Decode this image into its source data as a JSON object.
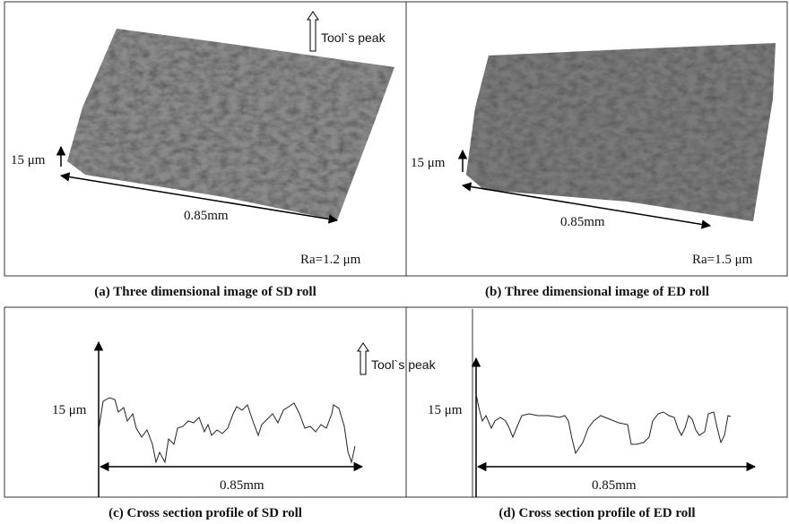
{
  "panels": [
    {
      "caption": "(a) Three dimensional image of SD roll",
      "annotation": "Tool`s peak",
      "height_label": "15 μm",
      "length_label": "0.85mm",
      "roughness": "Ra=1.2 μm"
    },
    {
      "caption": "(b) Three dimensional image of ED roll",
      "height_label": "15 μm",
      "length_label": "0.85mm",
      "roughness": "Ra=1.5 μm"
    },
    {
      "caption": "(c) Cross section profile of SD roll",
      "annotation": "Tool`s peak",
      "height_label": "15 μm",
      "length_label": "0.85mm"
    },
    {
      "caption": "(d) Cross section profile of ED roll",
      "height_label": "15 μm",
      "length_label": "0.85mm"
    }
  ]
}
